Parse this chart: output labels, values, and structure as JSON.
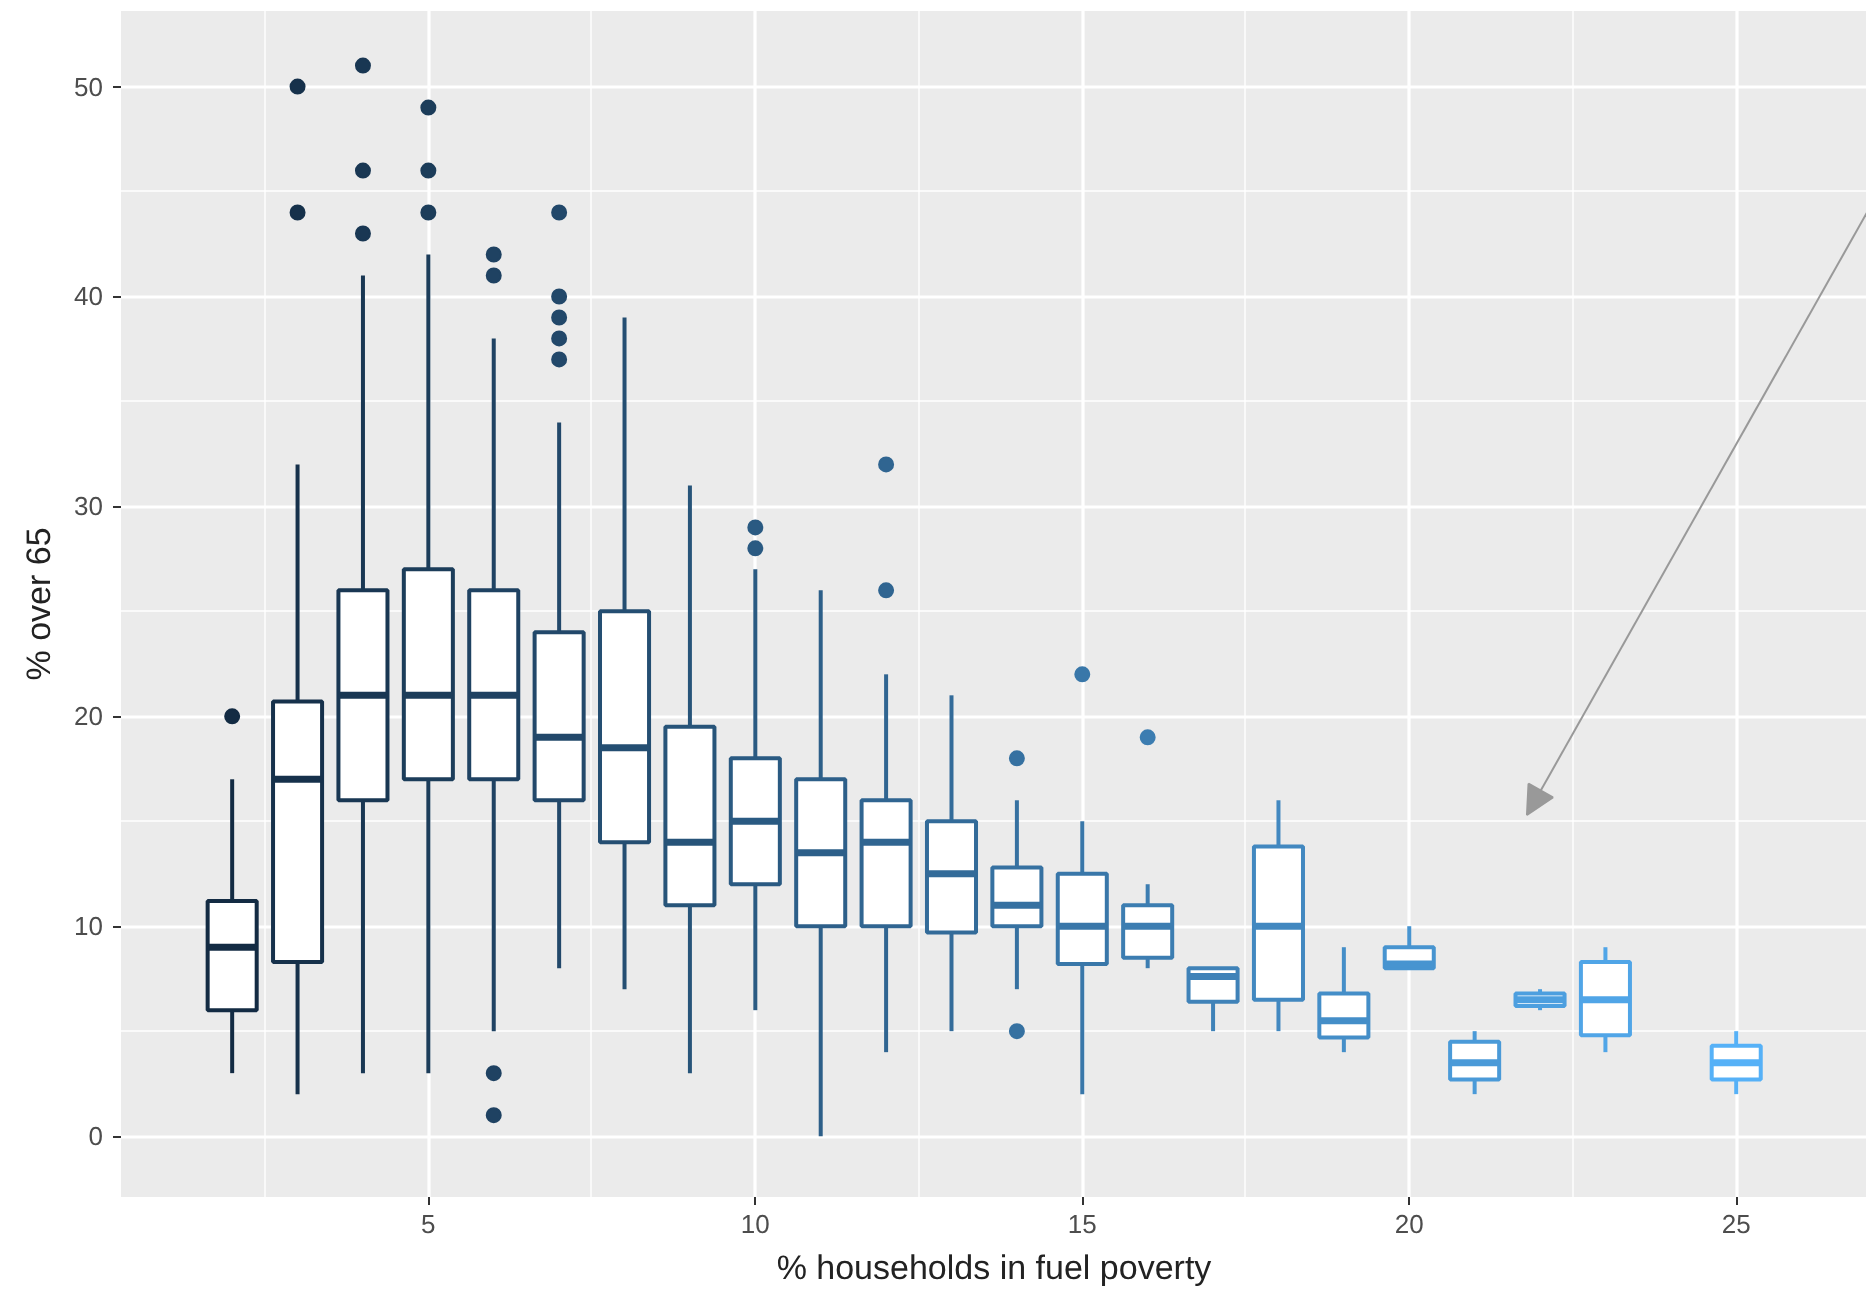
{
  "chart_data": {
    "type": "box",
    "xlabel": "% households in fuel poverty",
    "ylabel": "% over 65",
    "x": [
      2,
      3,
      4,
      5,
      6,
      7,
      8,
      9,
      10,
      11,
      12,
      13,
      14,
      15,
      16,
      17,
      18,
      19,
      20,
      21,
      22,
      23,
      25
    ],
    "colors": [
      "#132b43",
      "#16314b",
      "#193753",
      "#1c3d5a",
      "#1f4262",
      "#22486a",
      "#244e72",
      "#275479",
      "#2a5a82",
      "#2d5f89",
      "#306591",
      "#336b99",
      "#3671a1",
      "#3977a9",
      "#3c7db1",
      "#3f82b8",
      "#4288c0",
      "#448ec8",
      "#4794d0",
      "#4a9ad8",
      "#4d9fdf",
      "#50a5e7",
      "#56b1f7"
    ],
    "boxes": [
      {
        "low": 3,
        "q1": 6,
        "median": 9,
        "q3": 11.2,
        "high": 17,
        "outliers": [
          20
        ]
      },
      {
        "low": 2,
        "q1": 8.3,
        "median": 17,
        "q3": 20.7,
        "high": 32,
        "outliers": [
          44,
          50
        ]
      },
      {
        "low": 3,
        "q1": 16,
        "median": 21,
        "q3": 26,
        "high": 41,
        "outliers": [
          43,
          46,
          51
        ]
      },
      {
        "low": 3,
        "q1": 17,
        "median": 21,
        "q3": 27,
        "high": 42,
        "outliers": [
          44,
          46,
          49
        ]
      },
      {
        "low": 5,
        "q1": 17,
        "median": 21,
        "q3": 26,
        "high": 38,
        "outliers": [
          1,
          3,
          41,
          42
        ]
      },
      {
        "low": 8,
        "q1": 16,
        "median": 19,
        "q3": 24,
        "high": 34,
        "outliers": [
          37,
          38,
          39,
          40,
          44
        ]
      },
      {
        "low": 7,
        "q1": 14,
        "median": 18.5,
        "q3": 25,
        "high": 39
      },
      {
        "low": 3,
        "q1": 11,
        "median": 14,
        "q3": 19.5,
        "high": 31
      },
      {
        "low": 6,
        "q1": 12,
        "median": 15,
        "q3": 18,
        "high": 27,
        "outliers": [
          28,
          29
        ]
      },
      {
        "low": 0,
        "q1": 10,
        "median": 13.5,
        "q3": 17,
        "high": 26
      },
      {
        "low": 4,
        "q1": 10,
        "median": 14,
        "q3": 16,
        "high": 22,
        "outliers": [
          26,
          32
        ]
      },
      {
        "low": 5,
        "q1": 9.7,
        "median": 12.5,
        "q3": 15,
        "high": 21
      },
      {
        "low": 7,
        "q1": 10,
        "median": 11,
        "q3": 12.8,
        "high": 16,
        "outliers": [
          5,
          18
        ]
      },
      {
        "low": 2,
        "q1": 8.2,
        "median": 10,
        "q3": 12.5,
        "high": 15,
        "outliers": [
          22
        ]
      },
      {
        "low": 8,
        "q1": 8.5,
        "median": 10,
        "q3": 11,
        "high": 12,
        "outliers": [
          19
        ]
      },
      {
        "low": 5,
        "q1": 6.4,
        "median": 7.6,
        "q3": 8,
        "high": 8
      },
      {
        "low": 5,
        "q1": 6.5,
        "median": 10,
        "q3": 13.8,
        "high": 16
      },
      {
        "low": 4,
        "q1": 4.7,
        "median": 5.5,
        "q3": 6.8,
        "high": 9
      },
      {
        "low": 8,
        "q1": 8,
        "median": 8.2,
        "q3": 9,
        "high": 10
      },
      {
        "low": 2,
        "q1": 2.7,
        "median": 3.5,
        "q3": 4.5,
        "high": 5
      },
      {
        "low": 6,
        "q1": 6.2,
        "median": 6.5,
        "q3": 6.8,
        "high": 7
      },
      {
        "low": 4,
        "q1": 4.8,
        "median": 6.5,
        "q3": 8.3,
        "high": 9
      },
      {
        "low": 2,
        "q1": 2.7,
        "median": 3.5,
        "q3": 4.3,
        "high": 5
      }
    ],
    "xlim": [
      0.3,
      27
    ],
    "ylim": [
      -2.9,
      53.6
    ],
    "xticks": [
      5,
      10,
      15,
      20,
      25
    ],
    "yticks": [
      0,
      10,
      20,
      30,
      40,
      50
    ],
    "grid": true
  }
}
